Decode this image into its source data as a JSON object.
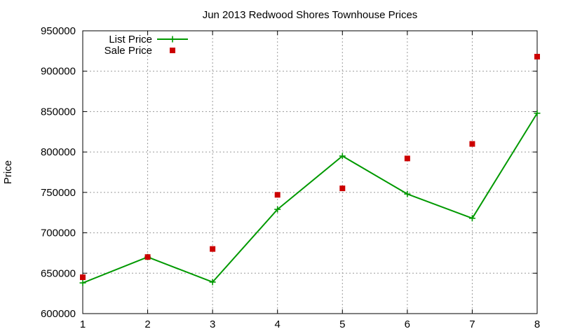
{
  "chart_data": {
    "type": "line",
    "title": "Jun 2013 Redwood Shores Townhouse Prices",
    "xlabel": "",
    "ylabel": "Price",
    "xlim": [
      1,
      8
    ],
    "ylim": [
      600000,
      950000
    ],
    "x_ticks": [
      1,
      2,
      3,
      4,
      5,
      6,
      7,
      8
    ],
    "y_ticks": [
      600000,
      650000,
      700000,
      750000,
      800000,
      850000,
      900000,
      950000
    ],
    "grid": true,
    "legend_position": "top-left",
    "x": [
      1,
      2,
      3,
      4,
      5,
      6,
      7,
      8
    ],
    "series": [
      {
        "name": "List Price",
        "style": "line-with-plus-markers",
        "color": "#009900",
        "values": [
          638000,
          670000,
          639000,
          729000,
          795000,
          748000,
          718000,
          848000
        ]
      },
      {
        "name": "Sale Price",
        "style": "square-points",
        "color": "#cc0000",
        "values": [
          645000,
          670000,
          680000,
          747000,
          755000,
          792000,
          810000,
          918000
        ]
      }
    ]
  }
}
